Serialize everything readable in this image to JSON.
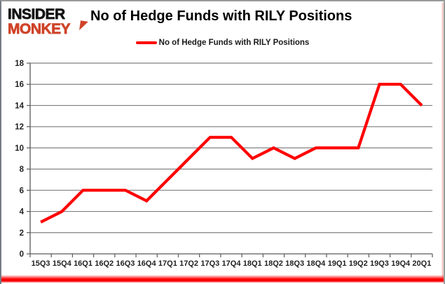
{
  "brand": {
    "line1": "INSIDER",
    "line2": "MONKEY",
    "line1_color": "#141414",
    "line2_color": "#cf4429"
  },
  "title": "No of Hedge Funds with RILY Positions",
  "legend": {
    "label": "No of Hedge Funds with RILY Positions",
    "line_color": "#ff0000"
  },
  "chart_data": {
    "type": "line",
    "title": "No of Hedge Funds with RILY Positions",
    "categories": [
      "15Q3",
      "15Q4",
      "16Q1",
      "16Q2",
      "16Q3",
      "16Q4",
      "17Q1",
      "17Q2",
      "17Q3",
      "17Q4",
      "18Q1",
      "18Q2",
      "18Q3",
      "18Q4",
      "19Q1",
      "19Q2",
      "19Q3",
      "19Q4",
      "20Q1"
    ],
    "series": [
      {
        "name": "No of Hedge Funds with RILY Positions",
        "color": "#ff0000",
        "values": [
          3,
          4,
          6,
          6,
          6,
          5,
          7,
          9,
          11,
          11,
          9,
          10,
          9,
          10,
          10,
          10,
          16,
          16,
          14
        ]
      }
    ],
    "xlabel": "",
    "ylabel": "",
    "ylim": [
      0,
      18
    ],
    "ytick_step": 2,
    "grid": true,
    "legend_position": "top",
    "gridline_color": "#808080",
    "axis_color": "#595959",
    "tick_label_color": "#1f1f1f"
  }
}
